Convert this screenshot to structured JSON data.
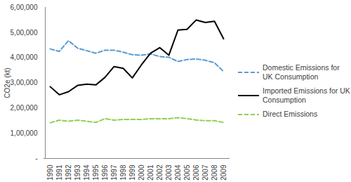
{
  "chart_data": {
    "type": "line",
    "y_label": "CO2e (kt)",
    "categories": [
      "1990",
      "1991",
      "1992",
      "1993",
      "1994",
      "1995",
      "1996",
      "1997",
      "1998",
      "1999",
      "2000",
      "2001",
      "2002",
      "2003",
      "2004",
      "2005",
      "2006",
      "2007",
      "2008",
      "2009"
    ],
    "series": [
      {
        "name": "Domestic Emissions for UK Consumption",
        "color": "#5b9bd5",
        "line_style": "dashed",
        "values": [
          435000,
          425000,
          468000,
          438000,
          428000,
          418000,
          430000,
          430000,
          422000,
          412000,
          410000,
          415000,
          405000,
          402000,
          385000,
          393000,
          395000,
          390000,
          380000,
          345000
        ]
      },
      {
        "name": "Imported Emissions for UK Consumption",
        "color": "#000000",
        "line_style": "solid",
        "values": [
          285000,
          253000,
          265000,
          290000,
          295000,
          292000,
          322000,
          365000,
          358000,
          320000,
          372000,
          418000,
          440000,
          410000,
          510000,
          513000,
          550000,
          540000,
          545000,
          475000
        ]
      },
      {
        "name": "Direct Emissions",
        "color": "#92d050",
        "line_style": "dashed",
        "values": [
          142000,
          152000,
          148000,
          152000,
          148000,
          143000,
          158000,
          152000,
          155000,
          155000,
          155000,
          158000,
          158000,
          158000,
          162000,
          158000,
          153000,
          150000,
          150000,
          143000
        ]
      }
    ],
    "ylim": [
      0,
      600000
    ],
    "yticks": [
      {
        "value": 0,
        "label": "-"
      },
      {
        "value": 100000,
        "label": "1,00,000"
      },
      {
        "value": 200000,
        "label": "2,00,000"
      },
      {
        "value": 300000,
        "label": "3,00,000"
      },
      {
        "value": 400000,
        "label": "4,00,000"
      },
      {
        "value": 500000,
        "label": "5,00,000"
      },
      {
        "value": 600000,
        "label": "6,00,000"
      }
    ],
    "legend": "right",
    "grid": false
  }
}
